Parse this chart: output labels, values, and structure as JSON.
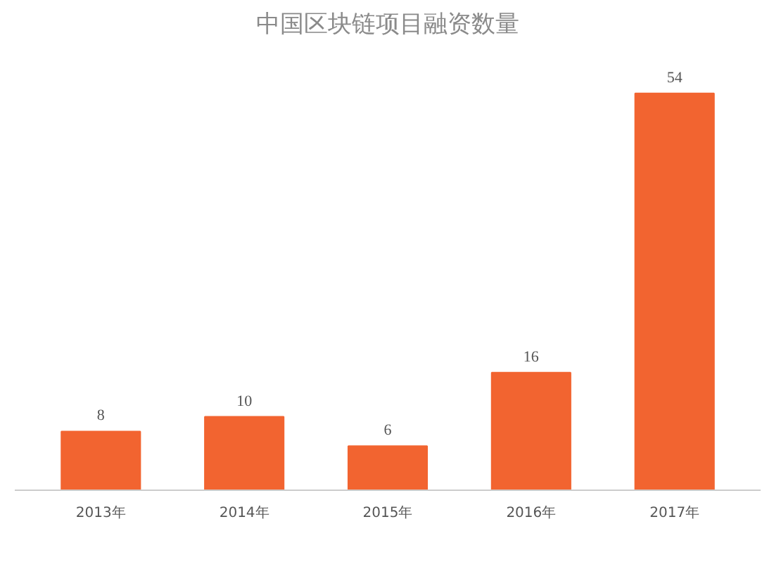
{
  "chart_data": {
    "type": "bar",
    "title": "中国区块链项目融资数量",
    "categories": [
      "2013年",
      "2014年",
      "2015年",
      "2016年",
      "2017年"
    ],
    "values": [
      8,
      10,
      6,
      16,
      54
    ],
    "color": "#f26430",
    "data_labels": true
  }
}
